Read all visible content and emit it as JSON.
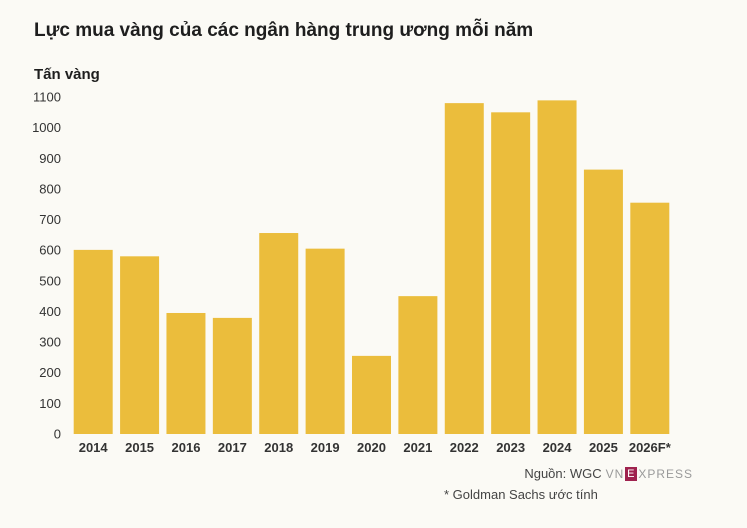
{
  "title": "Lực mua vàng của các ngân hàng trung ương mỗi năm",
  "footer": {
    "source": "Nguồn: WGC",
    "logo_text_left": "VN",
    "logo_text_e": "E",
    "logo_text_right": "XPRESS",
    "note": "* Goldman Sachs ước tính"
  },
  "colors": {
    "bar": "#ebbd3c",
    "background": "#fbfaf5",
    "logo": "#9f224e"
  },
  "chart_data": {
    "type": "bar",
    "title": "Lực mua vàng của các ngân hàng trung ương mỗi năm",
    "ylabel": "Tấn vàng",
    "xlabel": "",
    "categories": [
      "2014",
      "2015",
      "2016",
      "2017",
      "2018",
      "2019",
      "2020",
      "2021",
      "2022",
      "2023",
      "2024",
      "2025",
      "2026F*"
    ],
    "values": [
      601,
      580,
      395,
      379,
      656,
      605,
      255,
      450,
      1080,
      1050,
      1089,
      863,
      755
    ],
    "ylim": [
      0,
      1100
    ],
    "yticks": [
      0,
      100,
      200,
      300,
      400,
      500,
      600,
      700,
      800,
      900,
      1000,
      1100
    ],
    "grid": false,
    "legend": "none"
  }
}
